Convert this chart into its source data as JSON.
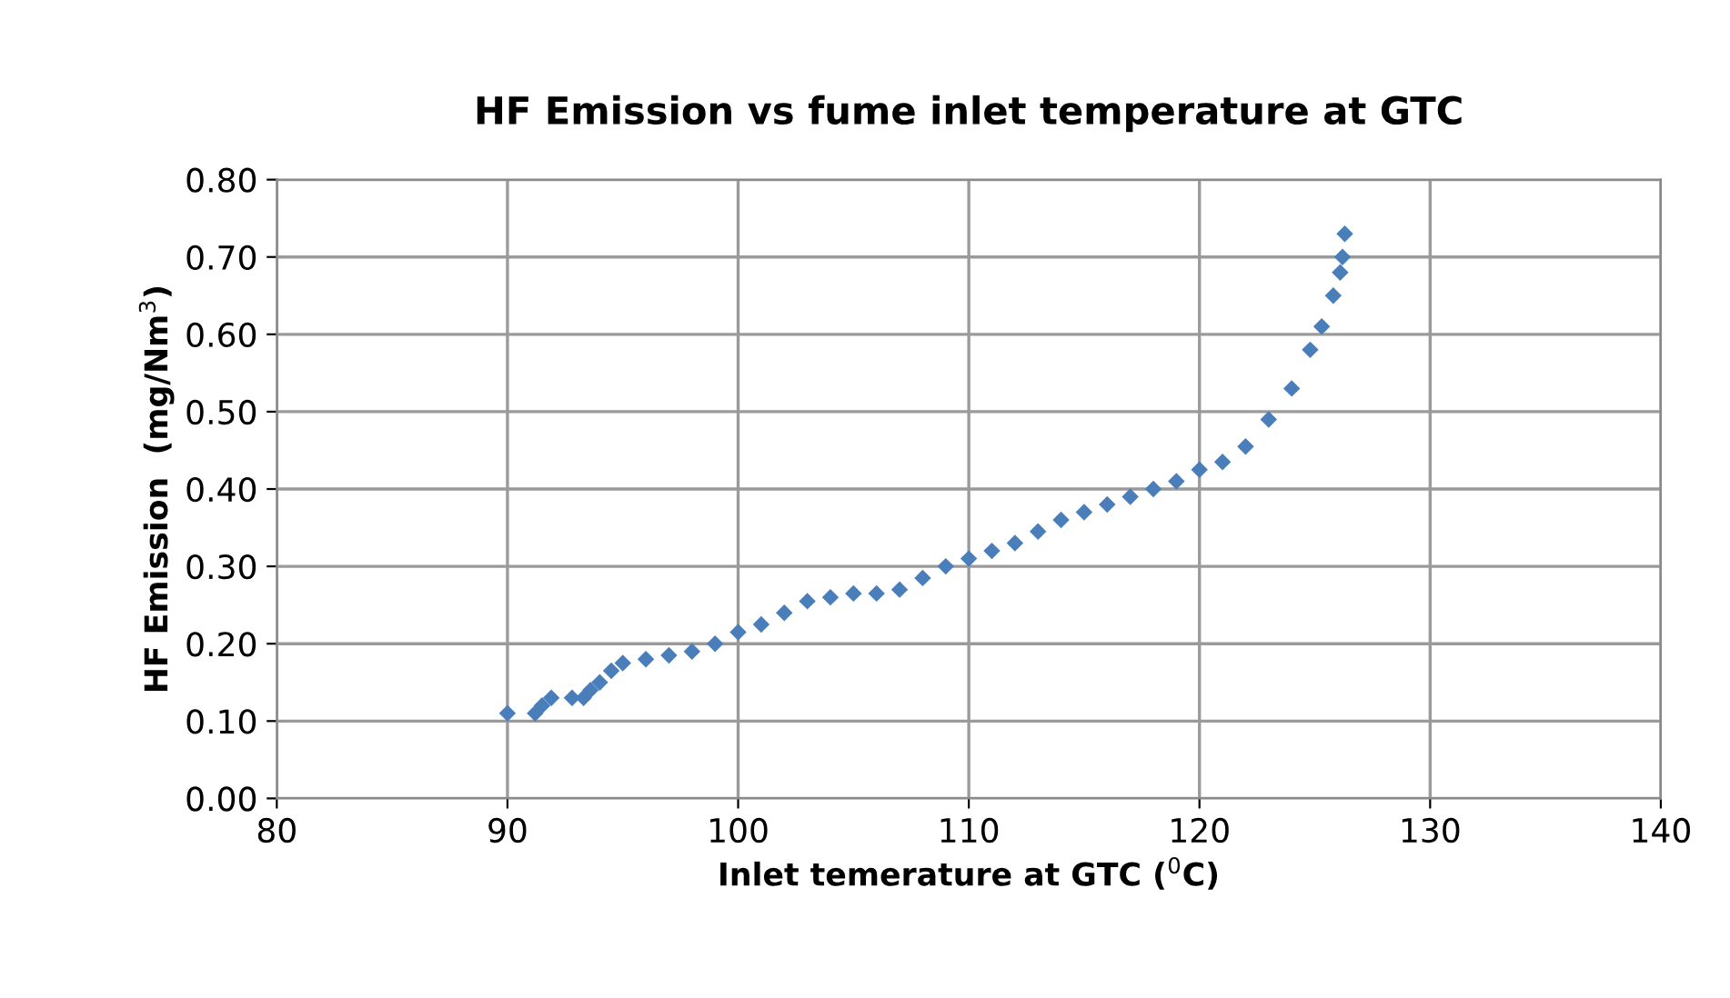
{
  "chart_data": {
    "type": "scatter",
    "title": "HF Emission vs fume inlet temperature at GTC",
    "xlabel": "Inlet temerature at GTC ($^{0}$C)",
    "ylabel": "HF Emission  (mg/Nm$^{3}$)",
    "x": [
      90.0,
      91.2,
      91.5,
      91.9,
      92.8,
      93.3,
      93.6,
      94.0,
      94.5,
      95.0,
      96,
      97,
      98,
      99,
      100,
      101,
      102,
      103,
      104,
      105,
      106,
      107,
      108,
      109,
      110,
      111,
      112,
      113,
      114,
      115,
      116,
      117,
      118,
      119,
      120,
      121,
      122,
      123,
      124,
      124.8,
      125.3,
      125.8,
      126.1,
      126.2,
      126.3
    ],
    "series": [
      {
        "color": "#4a7ebb",
        "values": [
          0.11,
          0.11,
          0.12,
          0.13,
          0.13,
          0.13,
          0.14,
          0.15,
          0.165,
          0.175,
          0.18,
          0.185,
          0.19,
          0.2,
          0.215,
          0.225,
          0.24,
          0.255,
          0.26,
          0.265,
          0.265,
          0.27,
          0.285,
          0.3,
          0.31,
          0.32,
          0.33,
          0.345,
          0.36,
          0.37,
          0.38,
          0.39,
          0.4,
          0.41,
          0.425,
          0.435,
          0.455,
          0.49,
          0.53,
          0.58,
          0.61,
          0.65,
          0.68,
          0.7,
          0.73
        ]
      }
    ],
    "xlim": [
      80,
      140
    ],
    "xticks": [
      80,
      90,
      100,
      110,
      120,
      130,
      140
    ],
    "ylim": [
      0,
      0.8
    ],
    "yticks": [
      {
        "value": 0,
        "label": "0.00"
      },
      {
        "value": 0.1,
        "label": "0.10"
      },
      {
        "value": 0.2,
        "label": "0.20"
      },
      {
        "value": 0.3,
        "label": "0.30"
      },
      {
        "value": 0.4,
        "label": "0.40"
      },
      {
        "value": 0.5,
        "label": "0.50"
      },
      {
        "value": 0.6,
        "label": "0.60"
      },
      {
        "value": 0.7,
        "label": "0.70"
      },
      {
        "value": 0.8,
        "label": "0.80"
      }
    ],
    "grid": true,
    "marker": "diamond",
    "legend": false
  }
}
